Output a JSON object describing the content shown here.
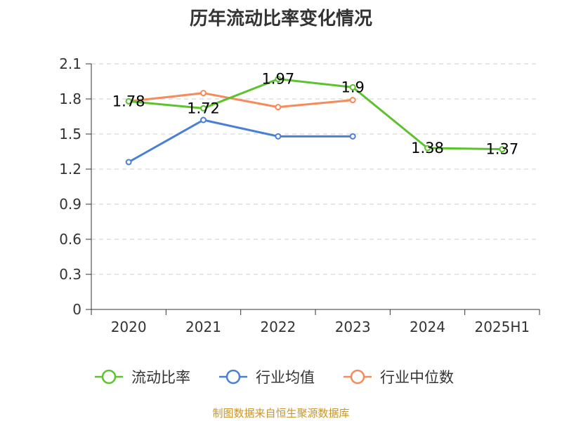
{
  "chart_data": {
    "type": "line",
    "title": "历年流动比率变化情况",
    "categories": [
      "2020",
      "2021",
      "2022",
      "2023",
      "2024",
      "2025H1"
    ],
    "ylim": [
      0,
      2.1
    ],
    "yticks": [
      "0",
      "0.3",
      "0.6",
      "0.9",
      "1.2",
      "1.5",
      "1.8",
      "2.1"
    ],
    "grid": true,
    "legend_position": "bottom",
    "series": [
      {
        "name": "流动比率",
        "color": "#5cc22e",
        "values": [
          1.78,
          1.72,
          1.97,
          1.9,
          1.38,
          1.37
        ],
        "labels": [
          "1.78",
          "1.72",
          "1.97",
          "1.9",
          "1.38",
          "1.37"
        ]
      },
      {
        "name": "行业均值",
        "color": "#4a7fd6",
        "values": [
          1.26,
          1.62,
          1.48,
          1.48,
          null,
          null
        ]
      },
      {
        "name": "行业中位数",
        "color": "#f58b5a",
        "values": [
          1.78,
          1.85,
          1.73,
          1.79,
          null,
          null
        ]
      }
    ]
  },
  "source_note": "制图数据来自恒生聚源数据库"
}
